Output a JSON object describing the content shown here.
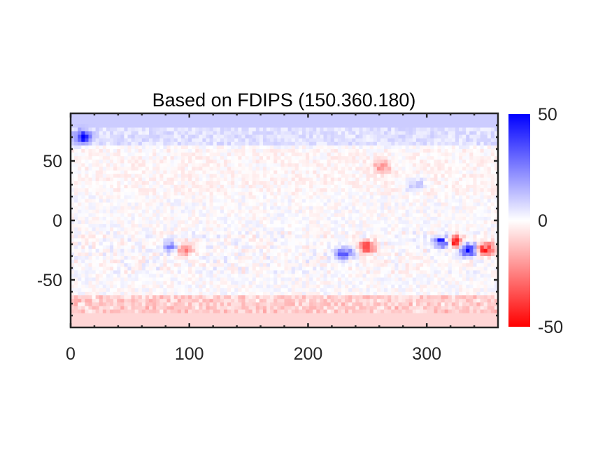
{
  "chart_data": {
    "type": "heatmap",
    "title": "Based on FDIPS (150.360.180)",
    "xlabel": "",
    "ylabel": "",
    "xlim": [
      0,
      360
    ],
    "ylim": [
      -90,
      90
    ],
    "x_ticks": [
      0,
      100,
      200,
      300
    ],
    "x_tick_labels": [
      "0",
      "100",
      "200",
      "300"
    ],
    "y_ticks": [
      -50,
      0,
      50
    ],
    "y_tick_labels": [
      "-50",
      "0",
      "50"
    ],
    "colorbar": {
      "range": [
        -50,
        50
      ],
      "ticks": [
        50,
        0,
        -50
      ],
      "tick_labels": [
        "50",
        "0",
        "-50"
      ],
      "colors": {
        "min": "#ff0000",
        "mid": "#ffffff",
        "max": "#0000ff"
      }
    },
    "grid": false,
    "field_features": {
      "north_polar_cap_value": 10,
      "south_polar_cap_value": -8,
      "active_regions": [
        {
          "lon": 85,
          "lat": -22,
          "peak": 25
        },
        {
          "lon": 95,
          "lat": -24,
          "peak": -30
        },
        {
          "lon": 230,
          "lat": -28,
          "peak": 40
        },
        {
          "lon": 250,
          "lat": -22,
          "peak": -35
        },
        {
          "lon": 262,
          "lat": 45,
          "peak": -20
        },
        {
          "lon": 290,
          "lat": 30,
          "peak": 18
        },
        {
          "lon": 315,
          "lat": -18,
          "peak": 60
        },
        {
          "lon": 322,
          "lat": -18,
          "peak": -60
        },
        {
          "lon": 335,
          "lat": -25,
          "peak": 55
        },
        {
          "lon": 350,
          "lat": -24,
          "peak": -45
        },
        {
          "lon": 10,
          "lat": 70,
          "peak": 40
        }
      ]
    }
  }
}
